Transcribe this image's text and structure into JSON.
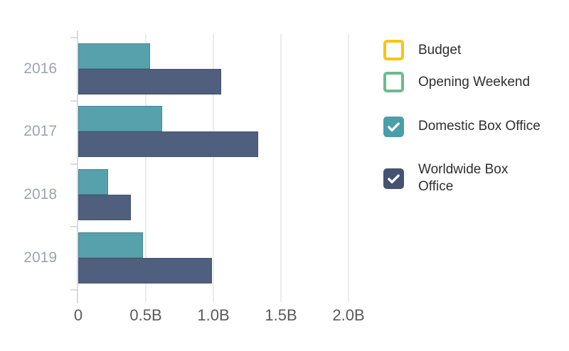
{
  "legend": {
    "items": [
      {
        "label": "Budget",
        "color": "#FAC40F",
        "checked": false
      },
      {
        "label": "Opening Weekend",
        "color": "#68BD8B",
        "checked": false
      },
      {
        "label": "Domestic Box Office",
        "color": "#4A9EA9",
        "checked": true
      },
      {
        "label": "Worldwide Box Office",
        "color": "#44536F",
        "checked": true
      }
    ]
  },
  "chart_data": {
    "type": "bar",
    "orientation": "horizontal",
    "title": "",
    "categories": [
      "2016",
      "2017",
      "2018",
      "2019"
    ],
    "series": [
      {
        "name": "Domestic Box Office",
        "color": "#56A1AB",
        "values_billions": [
          0.53,
          0.62,
          0.22,
          0.48
        ]
      },
      {
        "name": "Worldwide Box Office",
        "color": "#4F5F7D",
        "values_billions": [
          1.06,
          1.33,
          0.39,
          0.99
        ]
      }
    ],
    "x_axis": {
      "tick_labels": [
        "0",
        "0.5B",
        "1.0B",
        "1.5B",
        "2.0B"
      ],
      "tick_values": [
        0,
        0.5,
        1.0,
        1.5,
        2.0
      ],
      "min": 0,
      "max": 2.0
    },
    "y_axis": {
      "labels": [
        "2016",
        "2017",
        "2018",
        "2019"
      ]
    },
    "grid": true,
    "legend_position": "right",
    "colors": {
      "year_label": "#9AA5B2",
      "tick_label": "#58595B",
      "grid_line": "#ECECEC",
      "axis_line": "#D8DBDD",
      "background": "#FFFFFF",
      "check_mark": "#FFFFFF"
    }
  }
}
